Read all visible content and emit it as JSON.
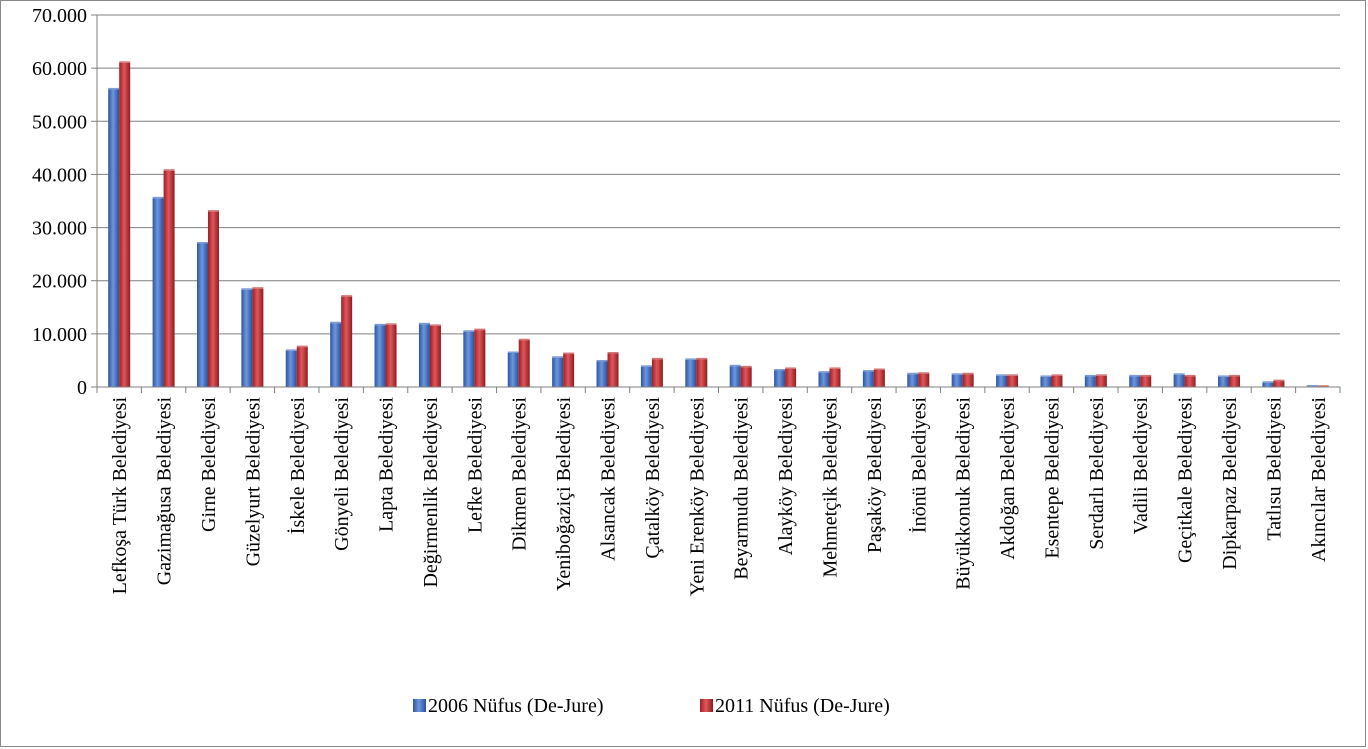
{
  "chart_data": {
    "type": "bar",
    "title": "",
    "xlabel": "",
    "ylabel": "",
    "ylim": [
      0,
      70000
    ],
    "yticks": [
      "0",
      "10.000",
      "20.000",
      "30.000",
      "40.000",
      "50.000",
      "60.000",
      "70.000"
    ],
    "grid": true,
    "legend_position": "bottom",
    "categories": [
      "Lefkoşa Türk Belediyesi",
      "Gazimağusa Belediyesi",
      "Girne Belediyesi",
      "Güzelyurt Belediyesi",
      "İskele Belediyesi",
      "Gönyeli Belediyesi",
      "Lapta Belediyesi",
      "Değirmenlik Belediyesi",
      "Lefke Belediyesi",
      "Dikmen Belediyesi",
      "Yeniboğaziçi Belediyesi",
      "Alsancak Belediyesi",
      "Çatalköy Belediyesi",
      "Yeni Erenköy Belediyesi",
      "Beyarmudu Belediyesi",
      "Alayköy Belediyesi",
      "Mehmetçik Belediyesi",
      "Paşaköy Belediyesi",
      "İnönü Belediyesi",
      "Büyükkonuk Belediyesi",
      "Akdoğan Belediyesi",
      "Esentepe Belediyesi",
      "Serdarlı Belediyesi",
      "Vadili Belediyesi",
      "Geçitkale Belediyesi",
      "Dipkarpaz Belediyesi",
      "Tatlısu Belediyesi",
      "Akıncılar Belediyesi"
    ],
    "series": [
      {
        "name": "2006 Nüfus (De-Jure)",
        "color": "#4472c4",
        "values": [
          56000,
          35500,
          27000,
          18300,
          6800,
          12000,
          11600,
          11800,
          10400,
          6400,
          5500,
          4800,
          3800,
          5100,
          3900,
          3100,
          2700,
          2900,
          2400,
          2300,
          2100,
          1900,
          2000,
          2000,
          2300,
          1900,
          800,
          100
        ]
      },
      {
        "name": "2011 Nüfus (De-Jure)",
        "color": "#c0393b",
        "values": [
          61000,
          40700,
          33000,
          18500,
          7500,
          17000,
          11700,
          11500,
          10700,
          8800,
          6200,
          6300,
          5200,
          5200,
          3700,
          3400,
          3400,
          3200,
          2500,
          2400,
          2100,
          2100,
          2100,
          2000,
          2000,
          2000,
          1100,
          50
        ]
      }
    ]
  }
}
